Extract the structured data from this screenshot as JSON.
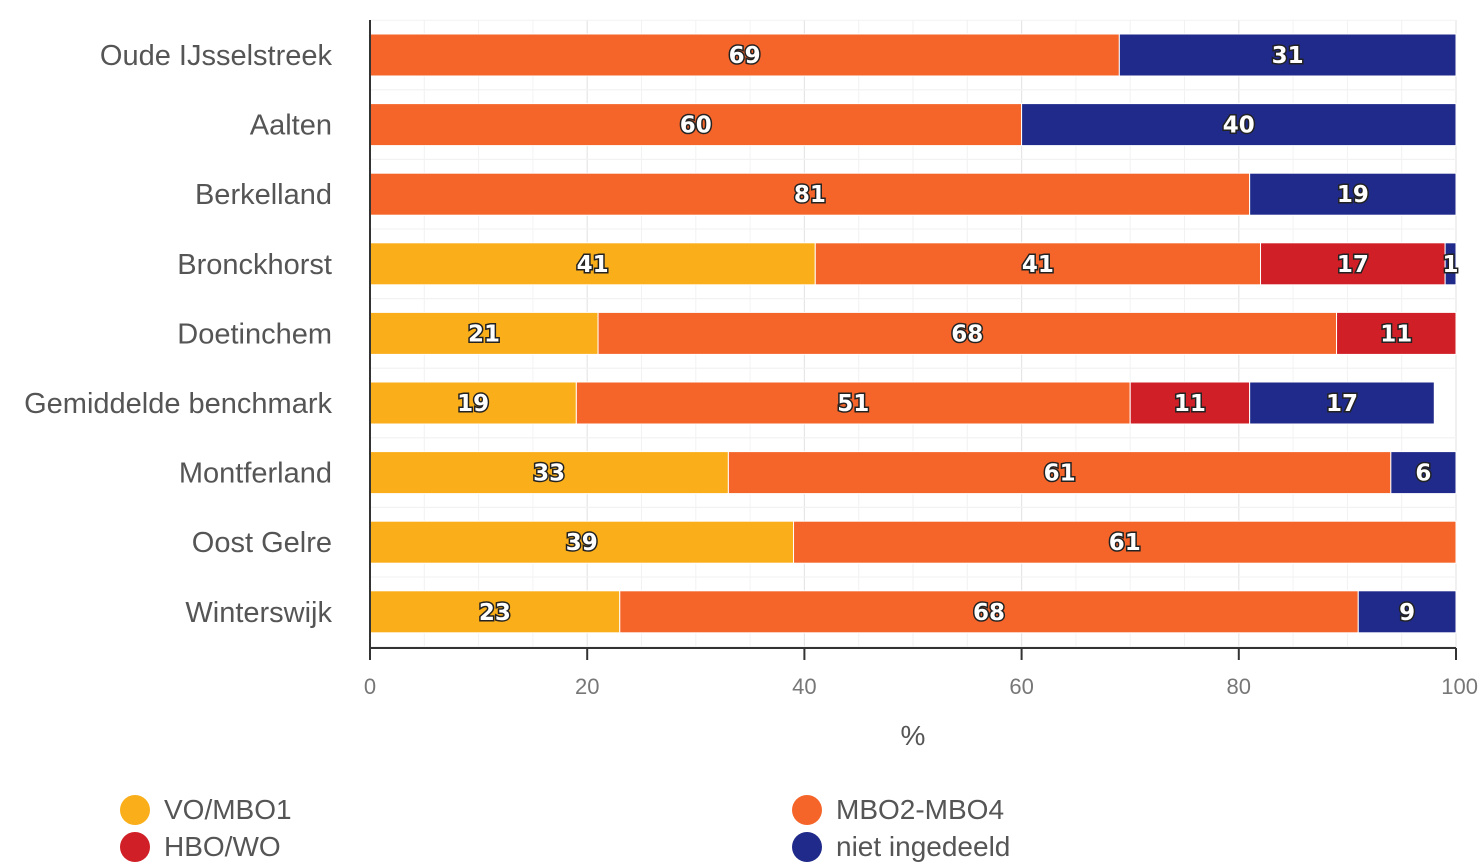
{
  "chart_data": {
    "type": "bar",
    "orientation": "horizontal",
    "stacked": true,
    "categories": [
      "Oude IJsselstreek",
      "Aalten",
      "Berkelland",
      "Bronckhorst",
      "Doetinchem",
      "Gemiddelde benchmark",
      "Montferland",
      "Oost Gelre",
      "Winterswijk"
    ],
    "series": [
      {
        "name": "VO/MBO1",
        "color": "#f9ae1a",
        "values": [
          0,
          0,
          0,
          41,
          21,
          19,
          33,
          39,
          23
        ]
      },
      {
        "name": "MBO2-MBO4",
        "color": "#f5652a",
        "values": [
          69,
          60,
          81,
          41,
          68,
          51,
          61,
          61,
          68
        ]
      },
      {
        "name": "HBO/WO",
        "color": "#d01f26",
        "values": [
          0,
          0,
          0,
          17,
          11,
          11,
          0,
          0,
          0
        ]
      },
      {
        "name": "niet ingedeeld",
        "color": "#1f2a8a",
        "values": [
          31,
          40,
          19,
          1,
          0,
          17,
          6,
          0,
          9
        ]
      }
    ],
    "xlabel": "%",
    "xlim": [
      0,
      100
    ],
    "xticks": [
      "0",
      "20",
      "40",
      "60",
      "80",
      "100"
    ],
    "grid": true,
    "legend_position": "bottom"
  }
}
